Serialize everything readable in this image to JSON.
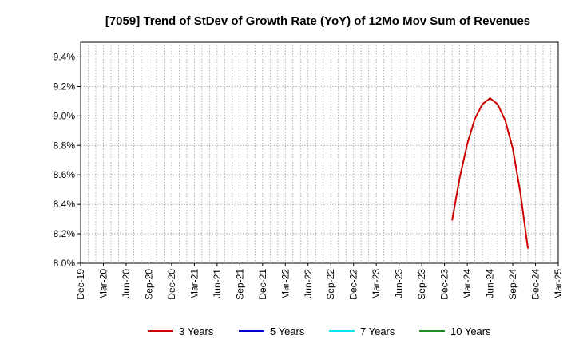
{
  "chart_data": {
    "type": "line",
    "title": "[7059]  Trend of StDev of Growth Rate (YoY) of 12Mo Mov Sum of Revenues",
    "xlabel": "",
    "ylabel": "",
    "y_unit": "%",
    "ylim": [
      8.0,
      9.5
    ],
    "yticks": [
      "8.0%",
      "8.2%",
      "8.4%",
      "8.6%",
      "8.8%",
      "9.0%",
      "9.2%",
      "9.4%"
    ],
    "xticks": [
      "Dec-19",
      "Mar-20",
      "Jun-20",
      "Sep-20",
      "Dec-20",
      "Mar-21",
      "Jun-21",
      "Sep-21",
      "Dec-21",
      "Mar-22",
      "Jun-22",
      "Sep-22",
      "Dec-22",
      "Mar-23",
      "Jun-23",
      "Sep-23",
      "Dec-23",
      "Mar-24",
      "Jun-24",
      "Sep-24",
      "Dec-24",
      "Mar-25"
    ],
    "grid": true,
    "legend_position": "bottom",
    "series": [
      {
        "name": "3 Years",
        "color": "#cc0000",
        "points": [
          {
            "x": "Jan-24",
            "y": 8.29
          },
          {
            "x": "Feb-24",
            "y": 8.58
          },
          {
            "x": "Mar-24",
            "y": 8.81
          },
          {
            "x": "Apr-24",
            "y": 8.98
          },
          {
            "x": "May-24",
            "y": 9.08
          },
          {
            "x": "Jun-24",
            "y": 9.12
          },
          {
            "x": "Jul-24",
            "y": 9.08
          },
          {
            "x": "Aug-24",
            "y": 8.97
          },
          {
            "x": "Sep-24",
            "y": 8.78
          },
          {
            "x": "Oct-24",
            "y": 8.48
          },
          {
            "x": "Nov-24",
            "y": 8.1
          }
        ]
      },
      {
        "name": "5 Years",
        "color": "#0000cc",
        "points": []
      },
      {
        "name": "7 Years",
        "color": "#00e5ee",
        "points": []
      },
      {
        "name": "10 Years",
        "color": "#228b22",
        "points": []
      }
    ]
  }
}
